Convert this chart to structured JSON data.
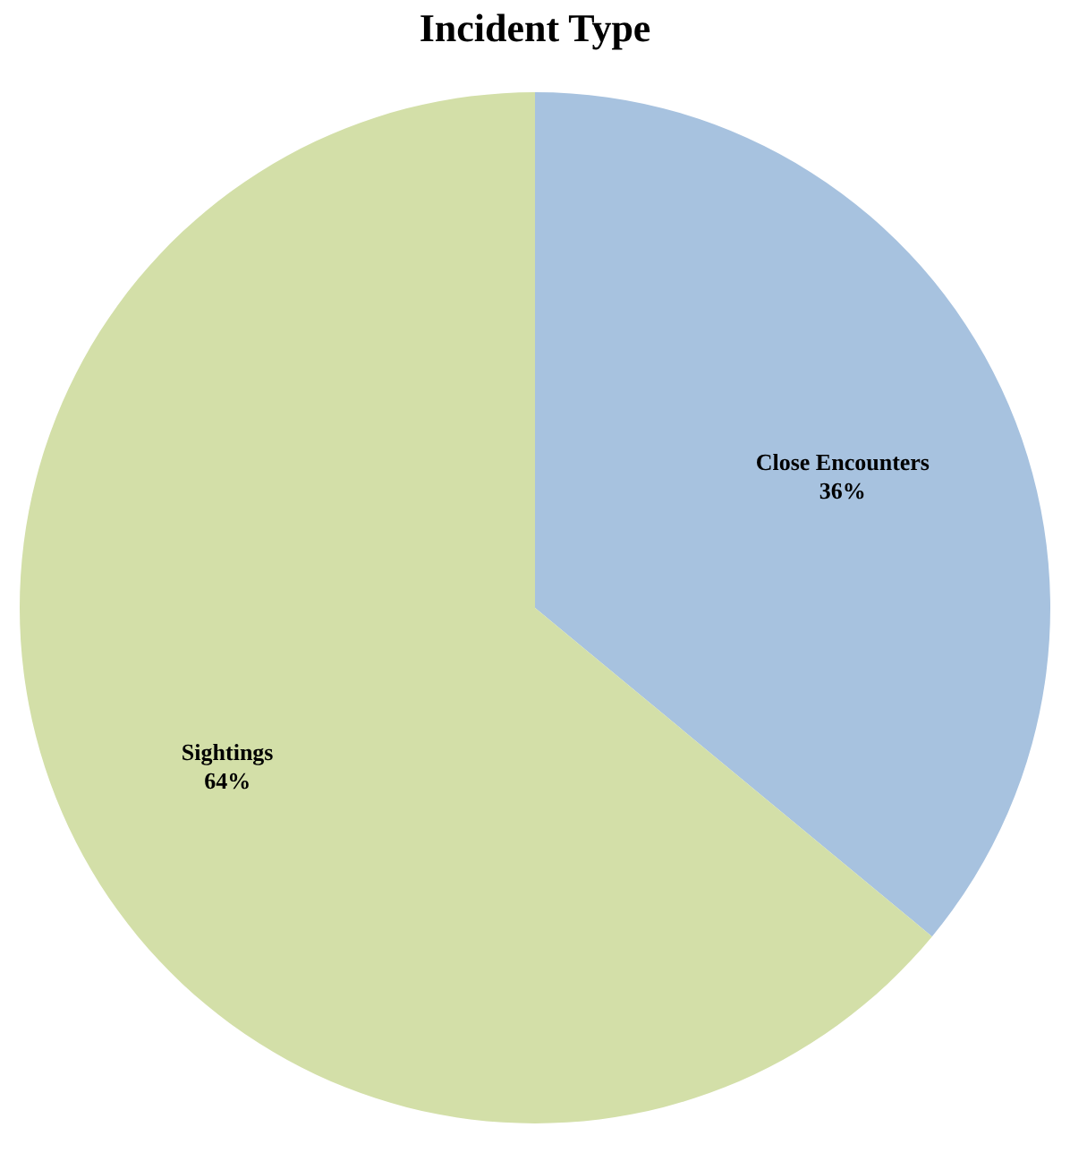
{
  "chart_data": {
    "type": "pie",
    "title": "Incident Type",
    "categories": [
      "Close Encounters",
      "Sightings"
    ],
    "values": [
      36,
      64
    ],
    "colors": [
      "#a7c2df",
      "#d3dfa8"
    ],
    "value_labels": [
      "36%",
      "64%"
    ],
    "legend": false
  }
}
